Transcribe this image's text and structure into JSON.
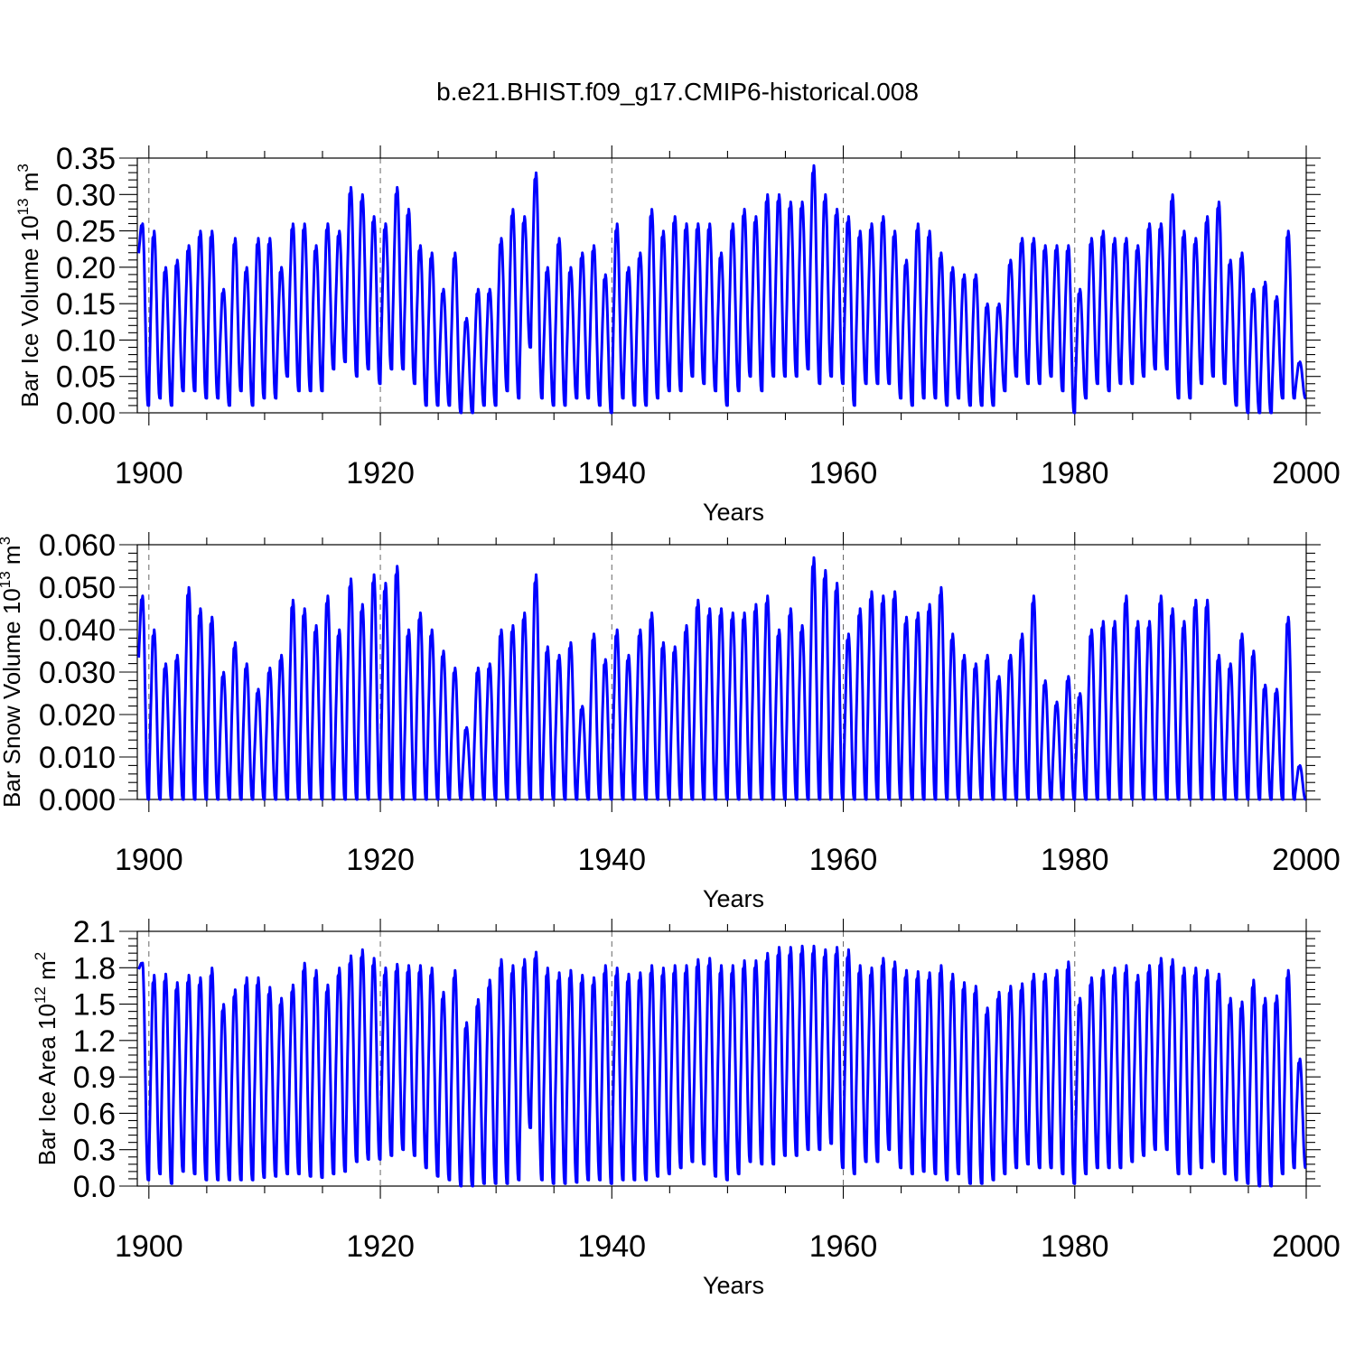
{
  "title": "b.e21.BHIST.f09_g17.CMIP6-historical.008",
  "chart_data": [
    {
      "type": "line",
      "ylabel_prefix": "Bar Ice Volume 10",
      "ylabel_exp": "13",
      "ylabel_unit": " m",
      "ylabel_unit_exp": "3",
      "xlabel": "Years",
      "xlim": [
        1899,
        2000
      ],
      "ylim": [
        0,
        0.35
      ],
      "x_ticks": [
        "1900",
        "1920",
        "1940",
        "1960",
        "1980",
        "2000"
      ],
      "y_ticks": [
        "0.00",
        "0.05",
        "0.10",
        "0.15",
        "0.20",
        "0.25",
        "0.30",
        "0.35"
      ],
      "x_grid": [
        1900,
        1920,
        1940,
        1960,
        1980
      ],
      "series": [
        {
          "name": "Bar Ice Volume",
          "color": "#0000ff",
          "start_year": 1899.1,
          "annual_max": [
            0.26,
            0.25,
            0.2,
            0.21,
            0.23,
            0.25,
            0.25,
            0.17,
            0.24,
            0.2,
            0.24,
            0.24,
            0.2,
            0.26,
            0.26,
            0.23,
            0.26,
            0.25,
            0.31,
            0.3,
            0.27,
            0.26,
            0.31,
            0.28,
            0.23,
            0.22,
            0.17,
            0.22,
            0.13,
            0.17,
            0.17,
            0.24,
            0.28,
            0.27,
            0.33,
            0.2,
            0.24,
            0.2,
            0.22,
            0.23,
            0.19,
            0.26,
            0.2,
            0.22,
            0.28,
            0.25,
            0.27,
            0.26,
            0.26,
            0.26,
            0.22,
            0.26,
            0.28,
            0.27,
            0.3,
            0.3,
            0.29,
            0.29,
            0.34,
            0.3,
            0.28,
            0.27,
            0.25,
            0.26,
            0.27,
            0.25,
            0.21,
            0.26,
            0.25,
            0.22,
            0.2,
            0.19,
            0.19,
            0.15,
            0.15,
            0.21,
            0.24,
            0.24,
            0.23,
            0.23,
            0.23,
            0.17,
            0.24,
            0.25,
            0.24,
            0.24,
            0.23,
            0.26,
            0.26,
            0.3,
            0.25,
            0.24,
            0.27,
            0.29,
            0.21,
            0.22,
            0.17,
            0.18,
            0.16,
            0.25,
            0.07
          ],
          "annual_min": [
            0.19,
            0.01,
            0.02,
            0.01,
            0.03,
            0.03,
            0.02,
            0.02,
            0.01,
            0.03,
            0.01,
            0.02,
            0.02,
            0.05,
            0.03,
            0.03,
            0.03,
            0.06,
            0.07,
            0.05,
            0.06,
            0.04,
            0.06,
            0.06,
            0.04,
            0.01,
            0.01,
            0.01,
            0.0,
            0.0,
            0.01,
            0.01,
            0.03,
            0.02,
            0.09,
            0.02,
            0.01,
            0.01,
            0.02,
            0.02,
            0.01,
            0.0,
            0.02,
            0.01,
            0.01,
            0.02,
            0.03,
            0.03,
            0.05,
            0.04,
            0.03,
            0.01,
            0.03,
            0.05,
            0.03,
            0.05,
            0.05,
            0.05,
            0.06,
            0.04,
            0.05,
            0.04,
            0.01,
            0.04,
            0.04,
            0.04,
            0.02,
            0.01,
            0.02,
            0.02,
            0.01,
            0.02,
            0.01,
            0.01,
            0.01,
            0.03,
            0.05,
            0.04,
            0.04,
            0.05,
            0.03,
            0.0,
            0.02,
            0.04,
            0.03,
            0.04,
            0.04,
            0.05,
            0.06,
            0.06,
            0.02,
            0.02,
            0.04,
            0.05,
            0.04,
            0.01,
            0.0,
            0.0,
            0.0,
            0.02,
            0.02
          ]
        }
      ]
    },
    {
      "type": "line",
      "ylabel_prefix": "Bar Snow Volume 10",
      "ylabel_exp": "13",
      "ylabel_unit": " m",
      "ylabel_unit_exp": "3",
      "xlabel": "Years",
      "xlim": [
        1899,
        2000
      ],
      "ylim": [
        0,
        0.06
      ],
      "x_ticks": [
        "1900",
        "1920",
        "1940",
        "1960",
        "1980",
        "2000"
      ],
      "y_ticks": [
        "0.000",
        "0.010",
        "0.020",
        "0.030",
        "0.040",
        "0.050",
        "0.060"
      ],
      "x_grid": [
        1900,
        1920,
        1940,
        1960,
        1980
      ],
      "series": [
        {
          "name": "Bar Snow Volume",
          "color": "#0000ff",
          "start_year": 1899.1,
          "annual_max": [
            0.048,
            0.04,
            0.032,
            0.034,
            0.05,
            0.045,
            0.043,
            0.03,
            0.037,
            0.032,
            0.026,
            0.031,
            0.034,
            0.047,
            0.045,
            0.041,
            0.048,
            0.04,
            0.052,
            0.046,
            0.053,
            0.051,
            0.055,
            0.04,
            0.044,
            0.04,
            0.035,
            0.031,
            0.017,
            0.031,
            0.032,
            0.04,
            0.041,
            0.044,
            0.053,
            0.036,
            0.034,
            0.037,
            0.022,
            0.039,
            0.033,
            0.04,
            0.034,
            0.04,
            0.044,
            0.037,
            0.036,
            0.041,
            0.047,
            0.045,
            0.045,
            0.044,
            0.044,
            0.046,
            0.048,
            0.04,
            0.045,
            0.041,
            0.057,
            0.054,
            0.051,
            0.039,
            0.045,
            0.049,
            0.048,
            0.049,
            0.043,
            0.044,
            0.046,
            0.05,
            0.039,
            0.034,
            0.032,
            0.034,
            0.029,
            0.034,
            0.039,
            0.048,
            0.028,
            0.023,
            0.029,
            0.025,
            0.04,
            0.042,
            0.042,
            0.048,
            0.042,
            0.042,
            0.048,
            0.045,
            0.042,
            0.047,
            0.047,
            0.034,
            0.032,
            0.039,
            0.035,
            0.027,
            0.026,
            0.043,
            0.008
          ],
          "annual_min": [
            0.023,
            0,
            0,
            0,
            0,
            0,
            0,
            0,
            0,
            0,
            0,
            0,
            0,
            0,
            0,
            0,
            0,
            0,
            0,
            0,
            0,
            0,
            0,
            0,
            0,
            0,
            0,
            0,
            0,
            0,
            0,
            0,
            0,
            0,
            0,
            0,
            0,
            0,
            0,
            0,
            0,
            0,
            0,
            0,
            0,
            0,
            0,
            0,
            0,
            0,
            0,
            0,
            0,
            0,
            0,
            0,
            0,
            0,
            0,
            0,
            0,
            0,
            0,
            0,
            0,
            0,
            0,
            0,
            0,
            0,
            0,
            0,
            0,
            0,
            0,
            0,
            0,
            0,
            0,
            0,
            0,
            0,
            0,
            0,
            0,
            0,
            0,
            0,
            0,
            0,
            0,
            0,
            0,
            0,
            0,
            0,
            0,
            0,
            0,
            0,
            0
          ]
        }
      ]
    },
    {
      "type": "line",
      "ylabel_prefix": "Bar Ice Area 10",
      "ylabel_exp": "12",
      "ylabel_unit": " m",
      "ylabel_unit_exp": "2",
      "xlabel": "Years",
      "xlim": [
        1899,
        2000
      ],
      "ylim": [
        0,
        2.1
      ],
      "x_ticks": [
        "1900",
        "1920",
        "1940",
        "1960",
        "1980",
        "2000"
      ],
      "y_ticks": [
        "0.0",
        "0.3",
        "0.6",
        "0.9",
        "1.2",
        "1.5",
        "1.8",
        "2.1"
      ],
      "x_grid": [
        1900,
        1920,
        1940,
        1960,
        1980
      ],
      "series": [
        {
          "name": "Bar Ice Area",
          "color": "#0000ff",
          "start_year": 1899.1,
          "annual_max": [
            1.84,
            1.74,
            1.75,
            1.68,
            1.74,
            1.72,
            1.8,
            1.5,
            1.62,
            1.72,
            1.72,
            1.64,
            1.55,
            1.66,
            1.84,
            1.78,
            1.66,
            1.8,
            1.9,
            1.95,
            1.88,
            1.8,
            1.83,
            1.82,
            1.82,
            1.8,
            1.6,
            1.78,
            1.35,
            1.54,
            1.7,
            1.87,
            1.82,
            1.87,
            1.93,
            1.8,
            1.76,
            1.78,
            1.74,
            1.72,
            1.82,
            1.8,
            1.75,
            1.76,
            1.82,
            1.8,
            1.82,
            1.82,
            1.87,
            1.88,
            1.82,
            1.82,
            1.86,
            1.86,
            1.92,
            1.97,
            1.97,
            1.98,
            1.98,
            1.95,
            1.97,
            1.95,
            1.82,
            1.8,
            1.88,
            1.85,
            1.78,
            1.77,
            1.76,
            1.82,
            1.75,
            1.68,
            1.65,
            1.47,
            1.6,
            1.65,
            1.67,
            1.75,
            1.75,
            1.78,
            1.85,
            1.55,
            1.72,
            1.78,
            1.8,
            1.82,
            1.74,
            1.82,
            1.88,
            1.87,
            1.8,
            1.8,
            1.78,
            1.75,
            1.55,
            1.52,
            1.7,
            1.55,
            1.57,
            1.78,
            1.05
          ],
          "annual_min": [
            1.75,
            0.05,
            0.1,
            0.02,
            0.12,
            0.1,
            0.05,
            0.05,
            0.05,
            0.05,
            0.05,
            0.07,
            0.08,
            0.1,
            0.1,
            0.08,
            0.07,
            0.1,
            0.12,
            0.2,
            0.22,
            0.22,
            0.25,
            0.3,
            0.25,
            0.15,
            0.08,
            0.05,
            0.0,
            0.0,
            0.02,
            0.02,
            0.02,
            0.05,
            0.48,
            0.05,
            0.02,
            0.02,
            0.03,
            0.05,
            0.05,
            0.02,
            0.05,
            0.05,
            0.05,
            0.08,
            0.1,
            0.15,
            0.2,
            0.18,
            0.08,
            0.05,
            0.1,
            0.2,
            0.18,
            0.18,
            0.25,
            0.25,
            0.3,
            0.3,
            0.35,
            0.15,
            0.1,
            0.2,
            0.2,
            0.3,
            0.15,
            0.1,
            0.12,
            0.1,
            0.05,
            0.1,
            0.02,
            0.02,
            0.05,
            0.1,
            0.15,
            0.18,
            0.15,
            0.15,
            0.1,
            0.02,
            0.1,
            0.15,
            0.15,
            0.15,
            0.2,
            0.25,
            0.3,
            0.3,
            0.1,
            0.1,
            0.15,
            0.2,
            0.1,
            0.05,
            0.02,
            0.0,
            0.0,
            0.1,
            0.15
          ]
        }
      ]
    }
  ]
}
